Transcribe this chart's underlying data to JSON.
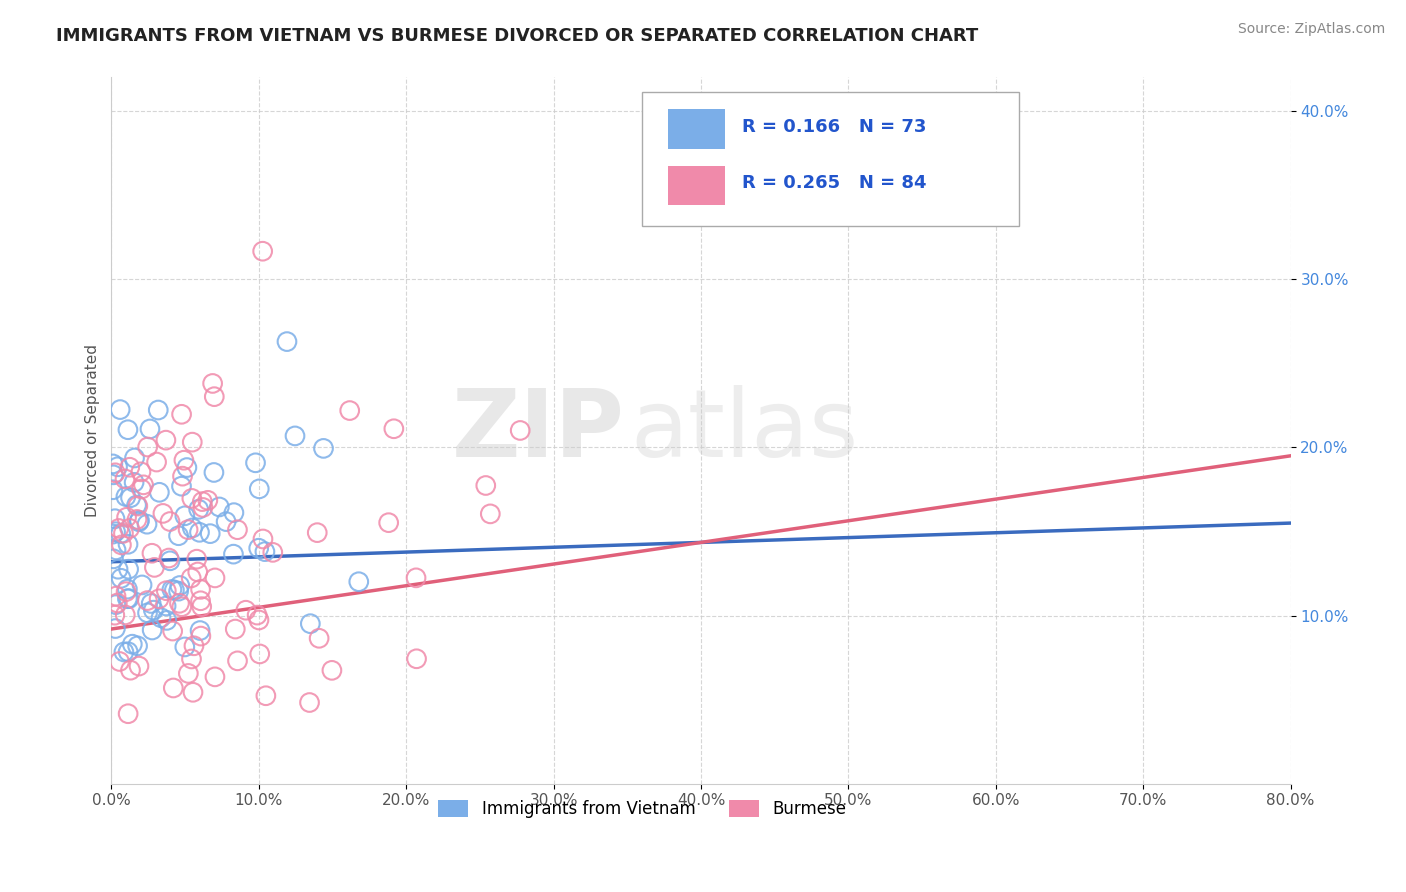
{
  "title": "IMMIGRANTS FROM VIETNAM VS BURMESE DIVORCED OR SEPARATED CORRELATION CHART",
  "source": "Source: ZipAtlas.com",
  "ylabel": "Divorced or Separated",
  "watermark_zip": "ZIP",
  "watermark_atlas": "atlas",
  "xlim": [
    0.0,
    0.8
  ],
  "ylim": [
    0.0,
    0.42
  ],
  "xticks": [
    0.0,
    0.1,
    0.2,
    0.3,
    0.4,
    0.5,
    0.6,
    0.7,
    0.8
  ],
  "yticks": [
    0.1,
    0.2,
    0.3,
    0.4
  ],
  "xtick_labels": [
    "0.0%",
    "10.0%",
    "20.0%",
    "30.0%",
    "40.0%",
    "50.0%",
    "60.0%",
    "70.0%",
    "80.0%"
  ],
  "ytick_labels": [
    "10.0%",
    "20.0%",
    "30.0%",
    "40.0%"
  ],
  "series": [
    {
      "name": "Immigrants from Vietnam",
      "color": "#7baee8",
      "R": 0.166,
      "N": 73,
      "trend_color": "#3a6bbf",
      "trend_start_y": 0.132,
      "trend_end_y": 0.155
    },
    {
      "name": "Burmese",
      "color": "#f08aaa",
      "R": 0.265,
      "N": 84,
      "trend_color": "#e0607a",
      "trend_start_y": 0.092,
      "trend_end_y": 0.195
    }
  ],
  "legend_R_color": "#2255cc",
  "grid_color": "#cccccc",
  "background_color": "#ffffff",
  "title_fontsize": 13,
  "axis_fontsize": 11,
  "tick_fontsize": 11,
  "source_fontsize": 10,
  "ytick_color": "#4488dd"
}
